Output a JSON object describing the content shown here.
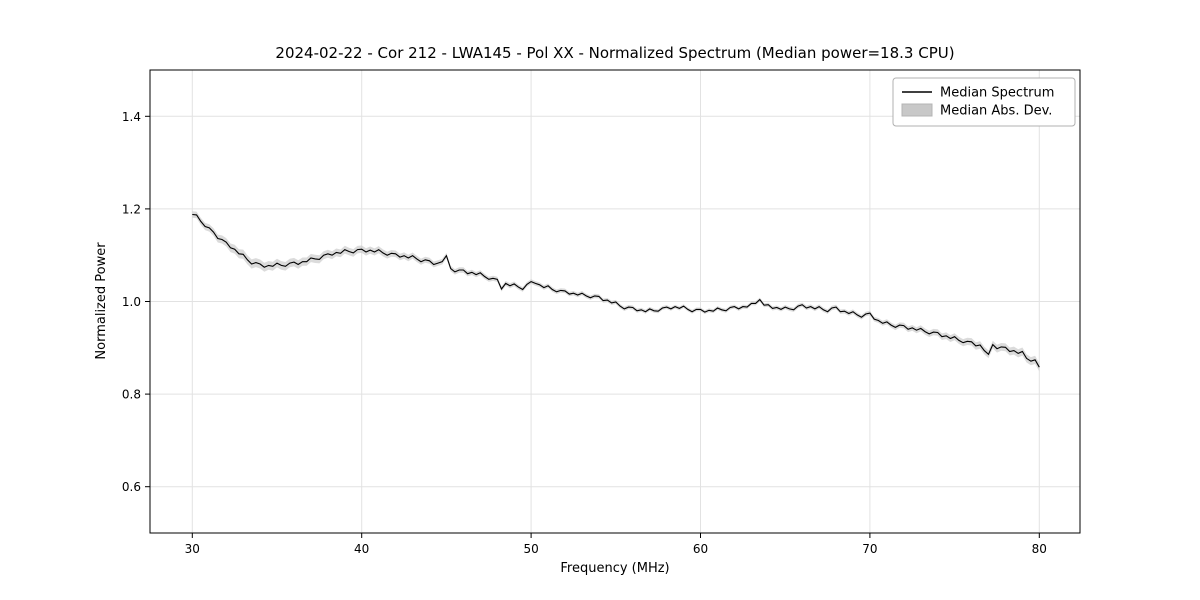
{
  "figure": {
    "background": "#ffffff"
  },
  "chart_data": {
    "type": "line",
    "title": "2024-02-22 - Cor 212 - LWA145 - Pol XX - Normalized Spectrum (Median power=18.3 CPU)",
    "xlabel": "Frequency (MHz)",
    "ylabel": "Normalized Power",
    "xlim": [
      27.5,
      82.4
    ],
    "ylim": [
      0.5,
      1.5
    ],
    "xticks": [
      30,
      40,
      50,
      60,
      70,
      80
    ],
    "yticks": [
      0.6,
      0.8,
      1.0,
      1.2,
      1.4
    ],
    "grid": true,
    "legend": {
      "position": "upper right",
      "entries": [
        {
          "label": "Median Spectrum",
          "type": "line",
          "color": "#000000"
        },
        {
          "label": "Median Abs. Dev.",
          "type": "patch",
          "color": "#c8c8c8"
        }
      ]
    },
    "series": [
      {
        "name": "Median Spectrum",
        "x_start": 30,
        "x_step": 0.25,
        "values": [
          1.188,
          1.187,
          1.173,
          1.162,
          1.159,
          1.15,
          1.136,
          1.134,
          1.128,
          1.116,
          1.113,
          1.103,
          1.102,
          1.09,
          1.081,
          1.084,
          1.081,
          1.074,
          1.078,
          1.076,
          1.083,
          1.078,
          1.076,
          1.083,
          1.085,
          1.08,
          1.086,
          1.086,
          1.094,
          1.092,
          1.091,
          1.1,
          1.103,
          1.1,
          1.106,
          1.104,
          1.112,
          1.108,
          1.105,
          1.112,
          1.113,
          1.107,
          1.111,
          1.107,
          1.112,
          1.105,
          1.1,
          1.104,
          1.103,
          1.096,
          1.099,
          1.094,
          1.099,
          1.092,
          1.086,
          1.09,
          1.088,
          1.08,
          1.083,
          1.086,
          1.099,
          1.071,
          1.064,
          1.068,
          1.068,
          1.06,
          1.063,
          1.058,
          1.062,
          1.054,
          1.048,
          1.05,
          1.048,
          1.027,
          1.039,
          1.034,
          1.038,
          1.031,
          1.026,
          1.037,
          1.043,
          1.039,
          1.036,
          1.03,
          1.034,
          1.026,
          1.021,
          1.024,
          1.023,
          1.016,
          1.018,
          1.014,
          1.018,
          1.012,
          1.008,
          1.012,
          1.011,
          1.002,
          1.003,
          0.997,
          0.999,
          0.99,
          0.984,
          0.988,
          0.987,
          0.98,
          0.982,
          0.978,
          0.984,
          0.98,
          0.979,
          0.986,
          0.988,
          0.984,
          0.989,
          0.985,
          0.99,
          0.983,
          0.978,
          0.983,
          0.983,
          0.977,
          0.981,
          0.979,
          0.986,
          0.982,
          0.98,
          0.987,
          0.989,
          0.984,
          0.989,
          0.988,
          0.996,
          0.996,
          1.004,
          0.992,
          0.993,
          0.985,
          0.987,
          0.983,
          0.988,
          0.984,
          0.982,
          0.99,
          0.993,
          0.986,
          0.989,
          0.984,
          0.989,
          0.982,
          0.978,
          0.986,
          0.988,
          0.978,
          0.979,
          0.974,
          0.978,
          0.971,
          0.966,
          0.973,
          0.975,
          0.962,
          0.959,
          0.953,
          0.956,
          0.949,
          0.944,
          0.949,
          0.948,
          0.94,
          0.943,
          0.938,
          0.942,
          0.935,
          0.93,
          0.934,
          0.933,
          0.924,
          0.926,
          0.92,
          0.924,
          0.916,
          0.911,
          0.914,
          0.913,
          0.904,
          0.906,
          0.894,
          0.886,
          0.907,
          0.898,
          0.902,
          0.901,
          0.892,
          0.894,
          0.888,
          0.892,
          0.877,
          0.871,
          0.874,
          0.858
        ]
      }
    ],
    "mad_band": {
      "halfwidth_points": [
        [
          30,
          0.007
        ],
        [
          33,
          0.01
        ],
        [
          40,
          0.008
        ],
        [
          45,
          0.006
        ],
        [
          50,
          0.005
        ],
        [
          60,
          0.004
        ],
        [
          70,
          0.005
        ],
        [
          76,
          0.008
        ],
        [
          80,
          0.009
        ]
      ]
    }
  },
  "colors": {
    "line": "#000000",
    "band_fill": "#c8c8c8",
    "band_edge": "#b4b4b4",
    "grid": "#e2e2e2",
    "axis": "#000000",
    "legend_border": "#b0b0b0",
    "background": "#ffffff"
  }
}
